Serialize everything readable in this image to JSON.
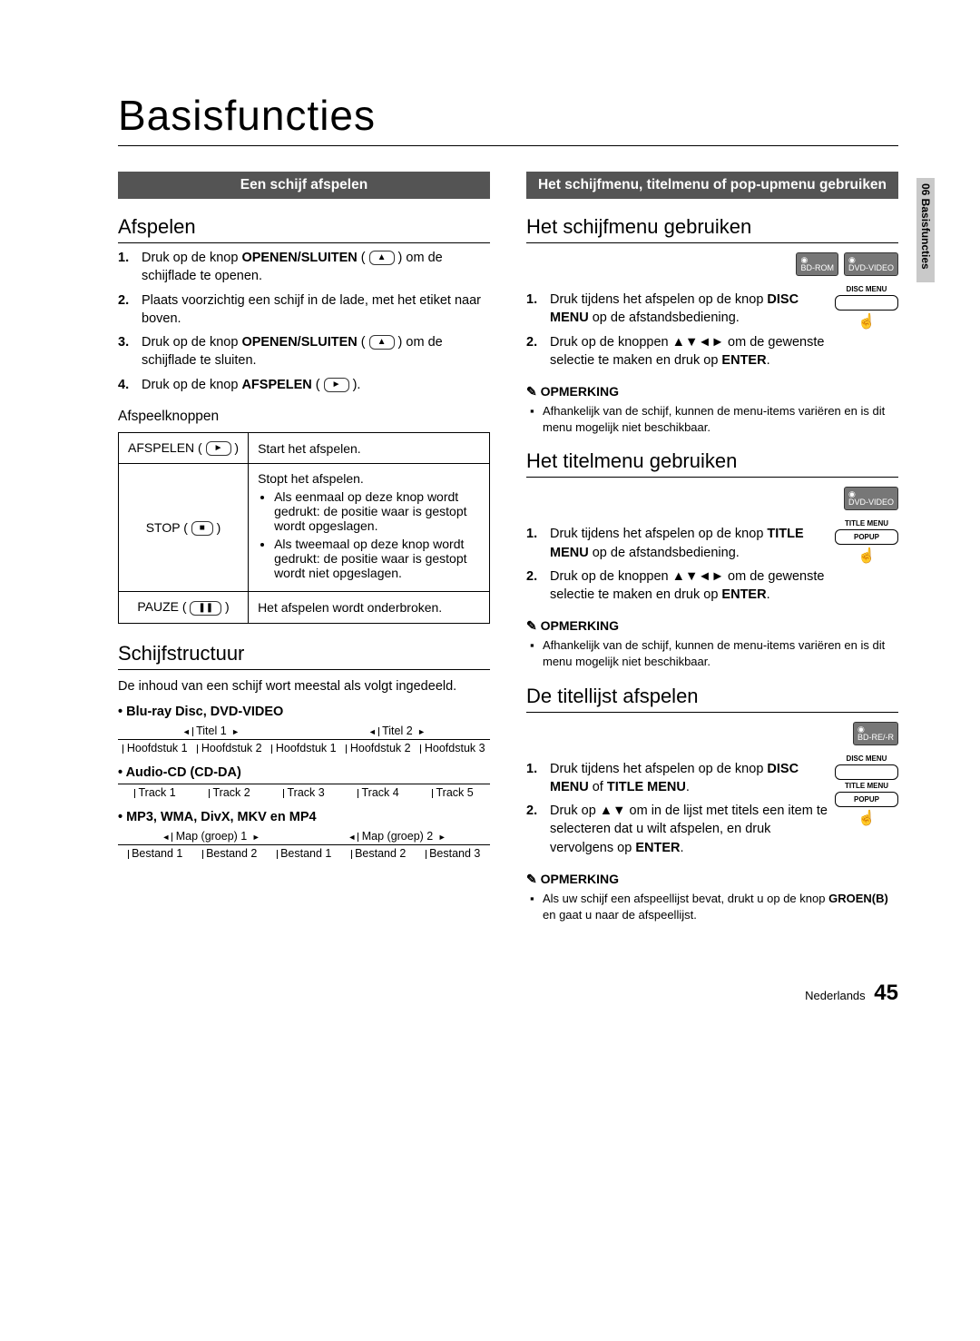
{
  "title": "Basisfuncties",
  "side_tab": "06  Basisfuncties",
  "left": {
    "bar": "Een schijf afspelen",
    "h_play": "Afspelen",
    "steps_play": [
      {
        "pre": "Druk op de knop ",
        "bold": "OPENEN/SLUITEN",
        "post": " ( ",
        "icon": "▲",
        "post2": " ) om de schijflade te openen."
      },
      {
        "pre": "Plaats voorzichtig een schijf in de lade, met het etiket naar boven."
      },
      {
        "pre": "Druk op de knop ",
        "bold": "OPENEN/SLUITEN",
        "post": " ( ",
        "icon": "▲",
        "post2": " ) om de schijflade te sluiten."
      },
      {
        "pre": "Druk op de knop ",
        "bold": "AFSPELEN",
        "post": " ( ",
        "icon": "►",
        "post2": " )."
      }
    ],
    "h_controls": "Afspeelknoppen",
    "table": [
      {
        "k": "AFSPELEN",
        "ki": "►",
        "v": "Start het afspelen."
      },
      {
        "k": "STOP",
        "ki": "■",
        "v_lead": "Stopt het afspelen.",
        "v_items": [
          "Als eenmaal op deze knop wordt gedrukt: de positie waar is gestopt wordt opgeslagen.",
          "Als tweemaal op deze knop wordt gedrukt: de positie waar is gestopt wordt niet opgeslagen."
        ]
      },
      {
        "k": "PAUZE",
        "ki": "❚❚",
        "v": "Het afspelen wordt onderbroken."
      }
    ],
    "h_struct": "Schijfstructuur",
    "struct_intro": "De inhoud van een schijf wort meestal als volgt ingedeeld.",
    "s1_title": "• Blu-ray Disc, DVD-VIDEO",
    "s1_top": [
      "Titel 1",
      "Titel 2"
    ],
    "s1_bot": [
      "Hoofdstuk 1",
      "Hoofdstuk 2",
      "Hoofdstuk 1",
      "Hoofdstuk 2",
      "Hoofdstuk 3"
    ],
    "s2_title": "• Audio-CD (CD-DA)",
    "s2_bot": [
      "Track 1",
      "Track 2",
      "Track 3",
      "Track 4",
      "Track 5"
    ],
    "s3_title": "• MP3, WMA, DivX, MKV en MP4",
    "s3_top": [
      "Map (groep) 1",
      "Map (groep) 2"
    ],
    "s3_bot": [
      "Bestand 1",
      "Bestand 2",
      "Bestand 1",
      "Bestand 2",
      "Bestand 3"
    ]
  },
  "right": {
    "bar": "Het schijfmenu, titelmenu of pop-upmenu gebruiken",
    "h_disc": "Het schijfmenu gebruiken",
    "disc_icons": [
      "BD-ROM",
      "DVD-VIDEO"
    ],
    "disc_remote_label": "DISC MENU",
    "disc_steps": [
      {
        "pre": "Druk tijdens het afspelen op de knop ",
        "bold": "DISC MENU",
        "post": " op de afstandsbediening."
      },
      {
        "pre": "Druk op de knoppen ▲▼◄► om de gewenste selectie te maken en druk op ",
        "bold": "ENTER",
        "post": "."
      }
    ],
    "note_label": "OPMERKING",
    "disc_note": "Afhankelijk van de schijf, kunnen de menu-items variëren en is dit menu mogelijk niet beschikbaar.",
    "h_title": "Het titelmenu gebruiken",
    "title_icons": [
      "DVD-VIDEO"
    ],
    "title_remote_labels": [
      "TITLE MENU",
      "POPUP"
    ],
    "title_steps": [
      {
        "pre": "Druk tijdens het afspelen op de knop ",
        "bold": "TITLE MENU",
        "post": " op de afstandsbediening."
      },
      {
        "pre": "Druk op de knoppen ▲▼◄► om de gewenste selectie te maken en druk op ",
        "bold": "ENTER",
        "post": "."
      }
    ],
    "title_note": "Afhankelijk van de schijf, kunnen de menu-items variëren en is dit menu mogelijk niet beschikbaar.",
    "h_list": "De titellijst afspelen",
    "list_icons": [
      "BD-RE/-R"
    ],
    "list_remote_labels": [
      "DISC MENU",
      "TITLE MENU",
      "POPUP"
    ],
    "list_steps": [
      {
        "pre": "Druk tijdens het afspelen op de knop ",
        "bold": "DISC MENU",
        "mid": " of ",
        "bold2": "TITLE MENU",
        "post": "."
      },
      {
        "pre": "Druk op ▲▼ om in de lijst met titels een item te selecteren dat u wilt afspelen, en druk vervolgens op ",
        "bold": "ENTER",
        "post": "."
      }
    ],
    "list_note_pre": "Als uw schijf een afspeellijst bevat, drukt u op de knop ",
    "list_note_bold": "GROEN(B)",
    "list_note_post": " en gaat u naar de afspeellijst."
  },
  "footer": {
    "lang": "Nederlands",
    "page": "45"
  }
}
